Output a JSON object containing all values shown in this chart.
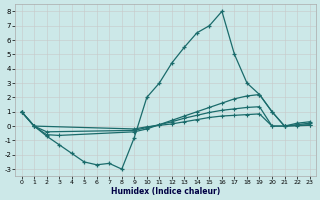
{
  "xlabel": "Humidex (Indice chaleur)",
  "bg_color": "#cce8e8",
  "grid_color": "#bbdddd",
  "line_color": "#1a6b6b",
  "xlim": [
    -0.5,
    23.5
  ],
  "ylim": [
    -3.5,
    8.5
  ],
  "xticks": [
    0,
    1,
    2,
    3,
    4,
    5,
    6,
    7,
    8,
    9,
    10,
    11,
    12,
    13,
    14,
    15,
    16,
    17,
    18,
    19,
    20,
    21,
    22,
    23
  ],
  "yticks": [
    -3,
    -2,
    -1,
    0,
    1,
    2,
    3,
    4,
    5,
    6,
    7,
    8
  ],
  "line1_x": [
    0,
    1,
    2,
    3,
    4,
    5,
    6,
    7,
    8,
    9,
    10,
    11,
    12,
    13,
    14,
    15,
    16,
    17,
    18,
    19,
    20,
    21,
    22,
    23
  ],
  "line1_y": [
    1.0,
    0.0,
    -0.7,
    -1.3,
    -1.9,
    -2.5,
    -2.7,
    -2.6,
    -3.0,
    -0.8,
    2.0,
    3.0,
    4.4,
    5.5,
    6.5,
    7.0,
    8.0,
    5.0,
    3.0,
    2.2,
    1.0,
    0.0,
    0.2,
    0.3
  ],
  "line2_x": [
    0,
    1,
    2,
    3,
    9,
    10,
    11,
    12,
    13,
    14,
    15,
    16,
    17,
    18,
    19,
    20,
    21,
    22,
    23
  ],
  "line2_y": [
    1.0,
    0.0,
    -0.6,
    -0.65,
    -0.4,
    -0.2,
    0.1,
    0.4,
    0.7,
    1.0,
    1.3,
    1.6,
    1.9,
    2.1,
    2.2,
    1.0,
    0.0,
    0.1,
    0.2
  ],
  "line3_x": [
    0,
    1,
    2,
    9,
    10,
    11,
    12,
    13,
    14,
    15,
    16,
    17,
    18,
    19,
    20,
    21,
    22,
    23
  ],
  "line3_y": [
    1.0,
    0.0,
    -0.4,
    -0.3,
    -0.1,
    0.1,
    0.3,
    0.55,
    0.75,
    0.95,
    1.1,
    1.2,
    1.3,
    1.35,
    0.0,
    0.0,
    0.05,
    0.1
  ],
  "line4_x": [
    0,
    1,
    9,
    10,
    11,
    12,
    13,
    14,
    15,
    16,
    17,
    18,
    19,
    20,
    21,
    22,
    23
  ],
  "line4_y": [
    1.0,
    0.0,
    -0.2,
    -0.05,
    0.05,
    0.15,
    0.3,
    0.45,
    0.6,
    0.7,
    0.75,
    0.8,
    0.85,
    0.0,
    0.0,
    0.02,
    0.05
  ]
}
